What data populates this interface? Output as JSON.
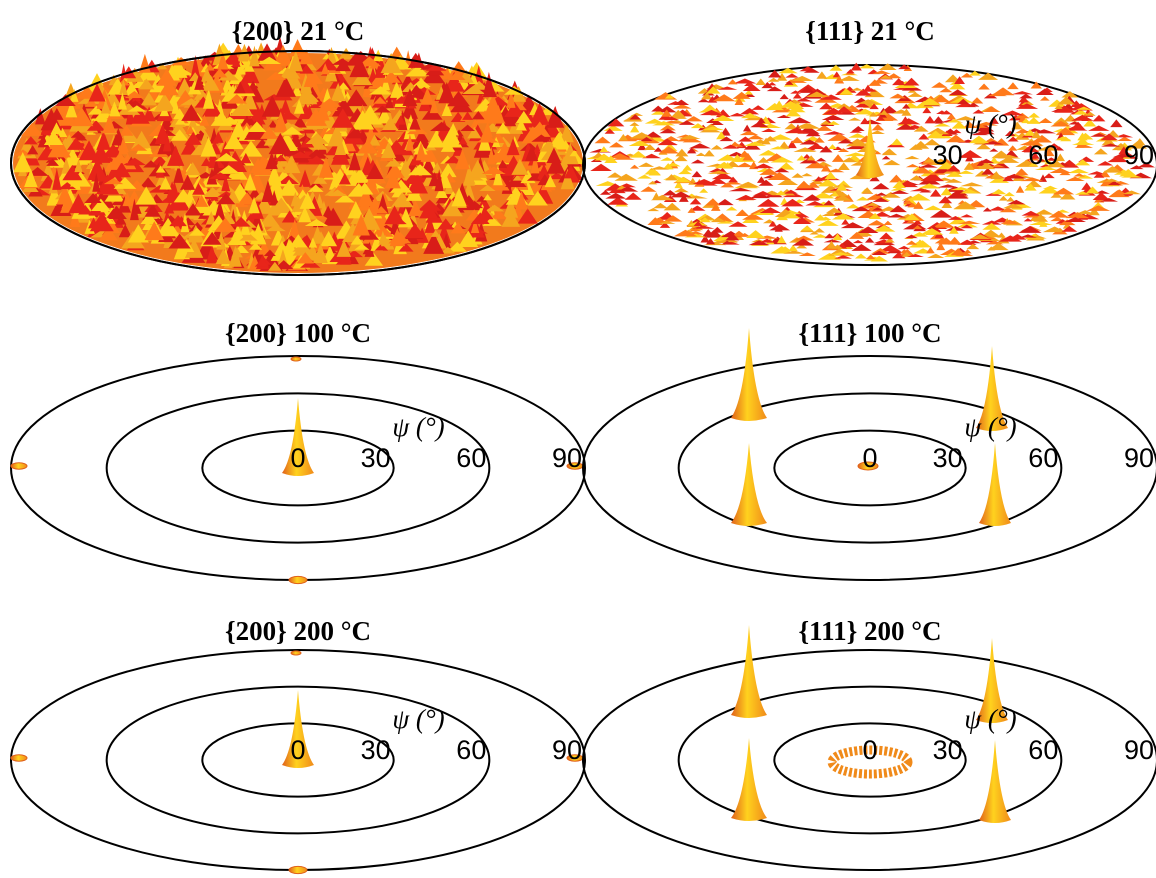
{
  "chart_data": [
    {
      "type": "pole-figure",
      "title": "{200} 21 °C",
      "texture": "random"
    },
    {
      "type": "pole-figure",
      "title": "{111} 21 °C",
      "texture": "random",
      "xlabel": "ψ (°)",
      "xticks": [
        30,
        60,
        90
      ]
    },
    {
      "type": "pole-figure",
      "title": "{200} 100 °C",
      "texture": "cube",
      "xlabel": "ψ (°)",
      "xticks": [
        0,
        30,
        60,
        90
      ]
    },
    {
      "type": "pole-figure",
      "title": "{111} 100 °C",
      "texture": "cube",
      "xlabel": "ψ (°)",
      "xticks": [
        0,
        30,
        60,
        90
      ]
    },
    {
      "type": "pole-figure",
      "title": "{200} 200 °C",
      "texture": "cube",
      "xlabel": "ψ (°)",
      "xticks": [
        0,
        30,
        60,
        90
      ]
    },
    {
      "type": "pole-figure",
      "title": "{111} 200 °C",
      "texture": "cube-ring",
      "xlabel": "ψ (°)",
      "xticks": [
        0,
        30,
        60,
        90
      ]
    }
  ]
}
